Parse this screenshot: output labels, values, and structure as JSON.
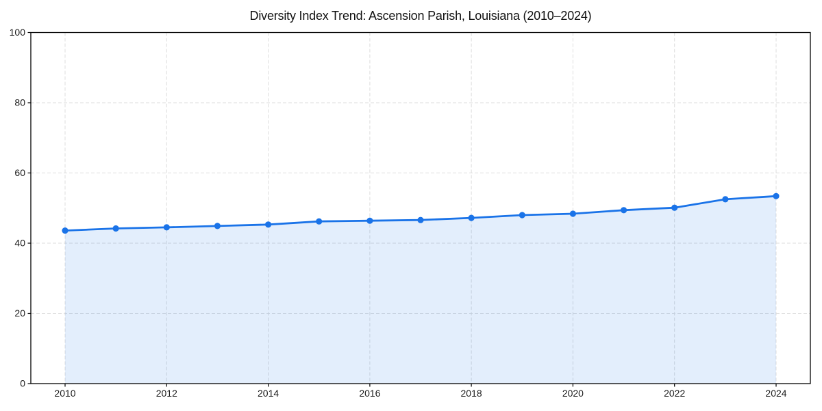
{
  "chart_data": {
    "type": "area",
    "title": "Diversity Index Trend: Ascension Parish, Louisiana (2010–2024)",
    "x": [
      2010,
      2011,
      2012,
      2013,
      2014,
      2015,
      2016,
      2017,
      2018,
      2019,
      2020,
      2021,
      2022,
      2023,
      2024
    ],
    "series": [
      {
        "name": "Diversity Index",
        "values": [
          43.6,
          44.2,
          44.5,
          44.9,
          45.3,
          46.2,
          46.4,
          46.6,
          47.2,
          48.0,
          48.4,
          49.4,
          50.1,
          52.5,
          53.4
        ]
      }
    ],
    "xlabel": "",
    "ylabel": "",
    "xlim": [
      2010,
      2024
    ],
    "ylim": [
      0,
      100
    ],
    "xticks": [
      2010,
      2012,
      2014,
      2016,
      2018,
      2020,
      2022,
      2024
    ],
    "yticks": [
      0,
      20,
      40,
      60,
      80,
      100
    ],
    "grid": true,
    "legend": false,
    "legend_position": "none",
    "line_color": "#1a73e8",
    "marker_color": "#1a73e8",
    "fill_color": "#1a73e8",
    "fill_opacity": 0.12,
    "grid_color": "#dcdcdc",
    "axis_color": "#000000",
    "text_color": "#1a1a1a"
  }
}
